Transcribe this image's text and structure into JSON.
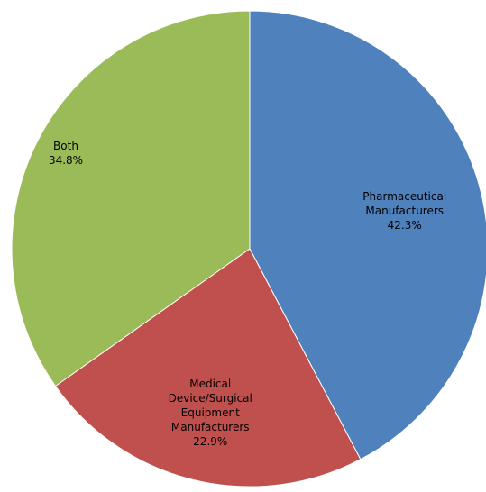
{
  "chart_data": {
    "type": "pie",
    "categories": [
      "Pharmaceutical Manufacturers",
      "Medical Device/Surgical Equipment Manufacturers",
      "Both"
    ],
    "values": [
      42.3,
      22.9,
      34.8
    ],
    "value_labels": [
      "42.3%",
      "22.9%",
      "34.8%"
    ],
    "colors": [
      "#4f81bd",
      "#c0504d",
      "#9bbb59"
    ]
  }
}
